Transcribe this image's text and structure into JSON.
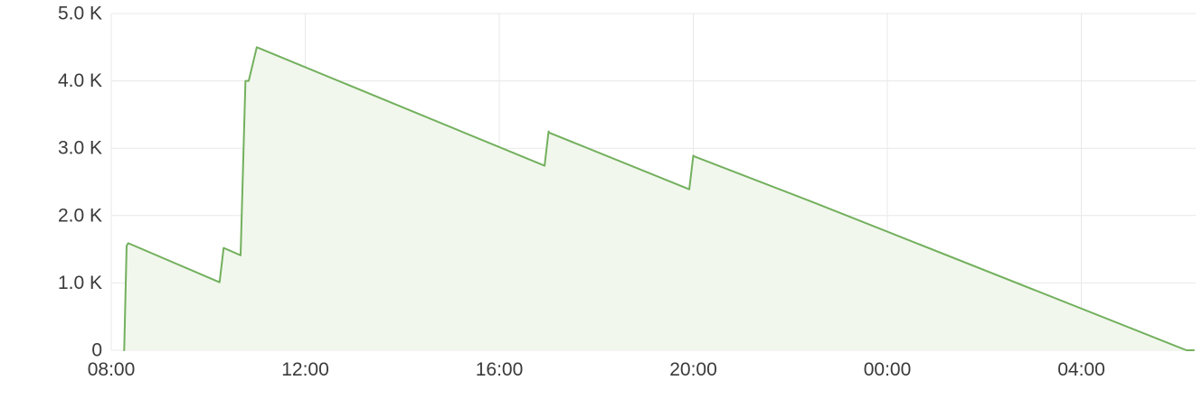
{
  "chart_data": {
    "type": "area",
    "grid": true,
    "legend": "none",
    "ylim": [
      0,
      5000
    ],
    "x_range": [
      "08:00",
      "06:20"
    ],
    "x_tick_labels": [
      "08:00",
      "12:00",
      "16:00",
      "20:00",
      "00:00",
      "04:00"
    ],
    "y_tick_labels": [
      "0",
      "1.0 K",
      "2.0 K",
      "3.0 K",
      "4.0 K",
      "5.0 K"
    ],
    "y_tick_values": [
      0,
      1000,
      2000,
      3000,
      4000,
      5000
    ],
    "colors": {
      "line": "#73b05e",
      "fill": "#f1f7ec"
    },
    "series": [
      {
        "x": [
          "08:15",
          "08:16",
          "08:19",
          "08:21",
          "10:14",
          "10:19",
          "10:40",
          "10:46",
          "10:50",
          "11:00",
          "16:56",
          "17:01",
          "17:02",
          "19:55",
          "20:00",
          "20:01",
          "22:30",
          "06:10",
          "06:20"
        ],
        "values": [
          0,
          0,
          1550,
          1590,
          1010,
          1520,
          1410,
          4000,
          4000,
          4500,
          2740,
          3250,
          3230,
          2390,
          2890,
          2880,
          2190,
          0,
          0
        ]
      }
    ]
  }
}
